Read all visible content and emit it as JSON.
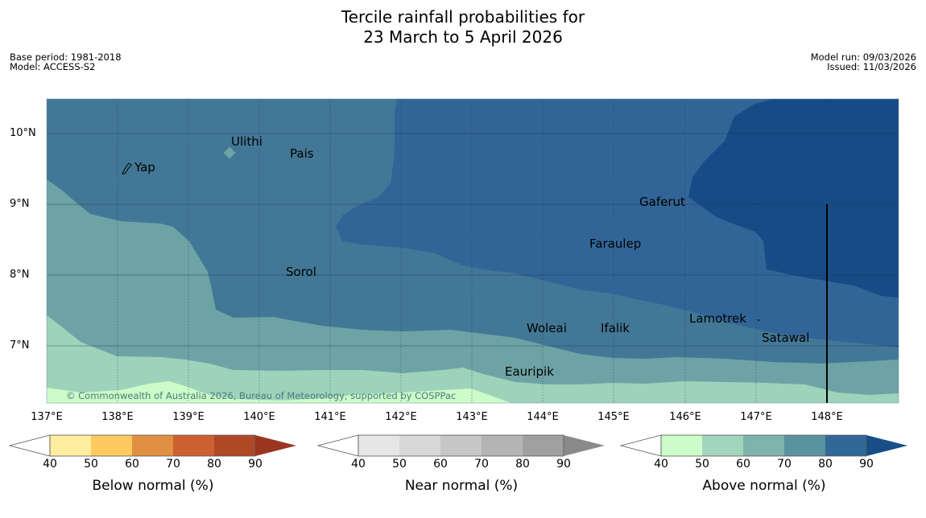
{
  "title_line1": "Tercile rainfall probabilities for",
  "title_line2": "23 March to 5 April 2026",
  "base_period": "Base period: 1981-2018",
  "model": "Model: ACCESS-S2",
  "model_run": "Model run: 09/03/2026",
  "issued": "Issued: 11/03/2026",
  "copyright": "© Commonwealth of Australia 2026, Bureau of Meteorology, supported by COSPPac",
  "x_ticks": [
    "137°E",
    "138°E",
    "139°E",
    "140°E",
    "141°E",
    "142°E",
    "143°E",
    "144°E",
    "145°E",
    "146°E",
    "147°E",
    "148°E"
  ],
  "y_ticks": [
    "10°N",
    "9°N",
    "8°N",
    "7°N"
  ],
  "places": [
    "Ulithi",
    "Pais",
    "Yap",
    "Gaferut",
    "Faraulep",
    "Sorol",
    "Lamotrek",
    "Woleai",
    "Ifalik",
    "Satawal",
    "Eauripik"
  ],
  "colorbars": [
    {
      "label": "Below normal (%)",
      "ticks": [
        "40",
        "50",
        "60",
        "70",
        "80",
        "90"
      ],
      "colors": [
        "#ffeda0",
        "#fec960",
        "#e09040",
        "#cc6030",
        "#b04825",
        "#9a3520"
      ]
    },
    {
      "label": "Near normal (%)",
      "ticks": [
        "40",
        "50",
        "60",
        "70",
        "80",
        "90"
      ],
      "colors": [
        "#e6e6e6",
        "#d8d8d8",
        "#c6c6c6",
        "#b4b4b4",
        "#a0a0a0",
        "#8a8a8a"
      ]
    },
    {
      "label": "Above normal (%)",
      "ticks": [
        "40",
        "50",
        "60",
        "70",
        "80",
        "90"
      ],
      "colors": [
        "#ccfcc8",
        "#a2d6bc",
        "#7eb4ac",
        "#5a92a0",
        "#306898",
        "#174e88"
      ]
    }
  ],
  "map_colors": {
    "c40": "#ccfcc8",
    "c50": "#9ed3bb",
    "c60": "#6ea3a6",
    "c70": "#427896",
    "c80": "#326597",
    "c90": "#164c86"
  }
}
